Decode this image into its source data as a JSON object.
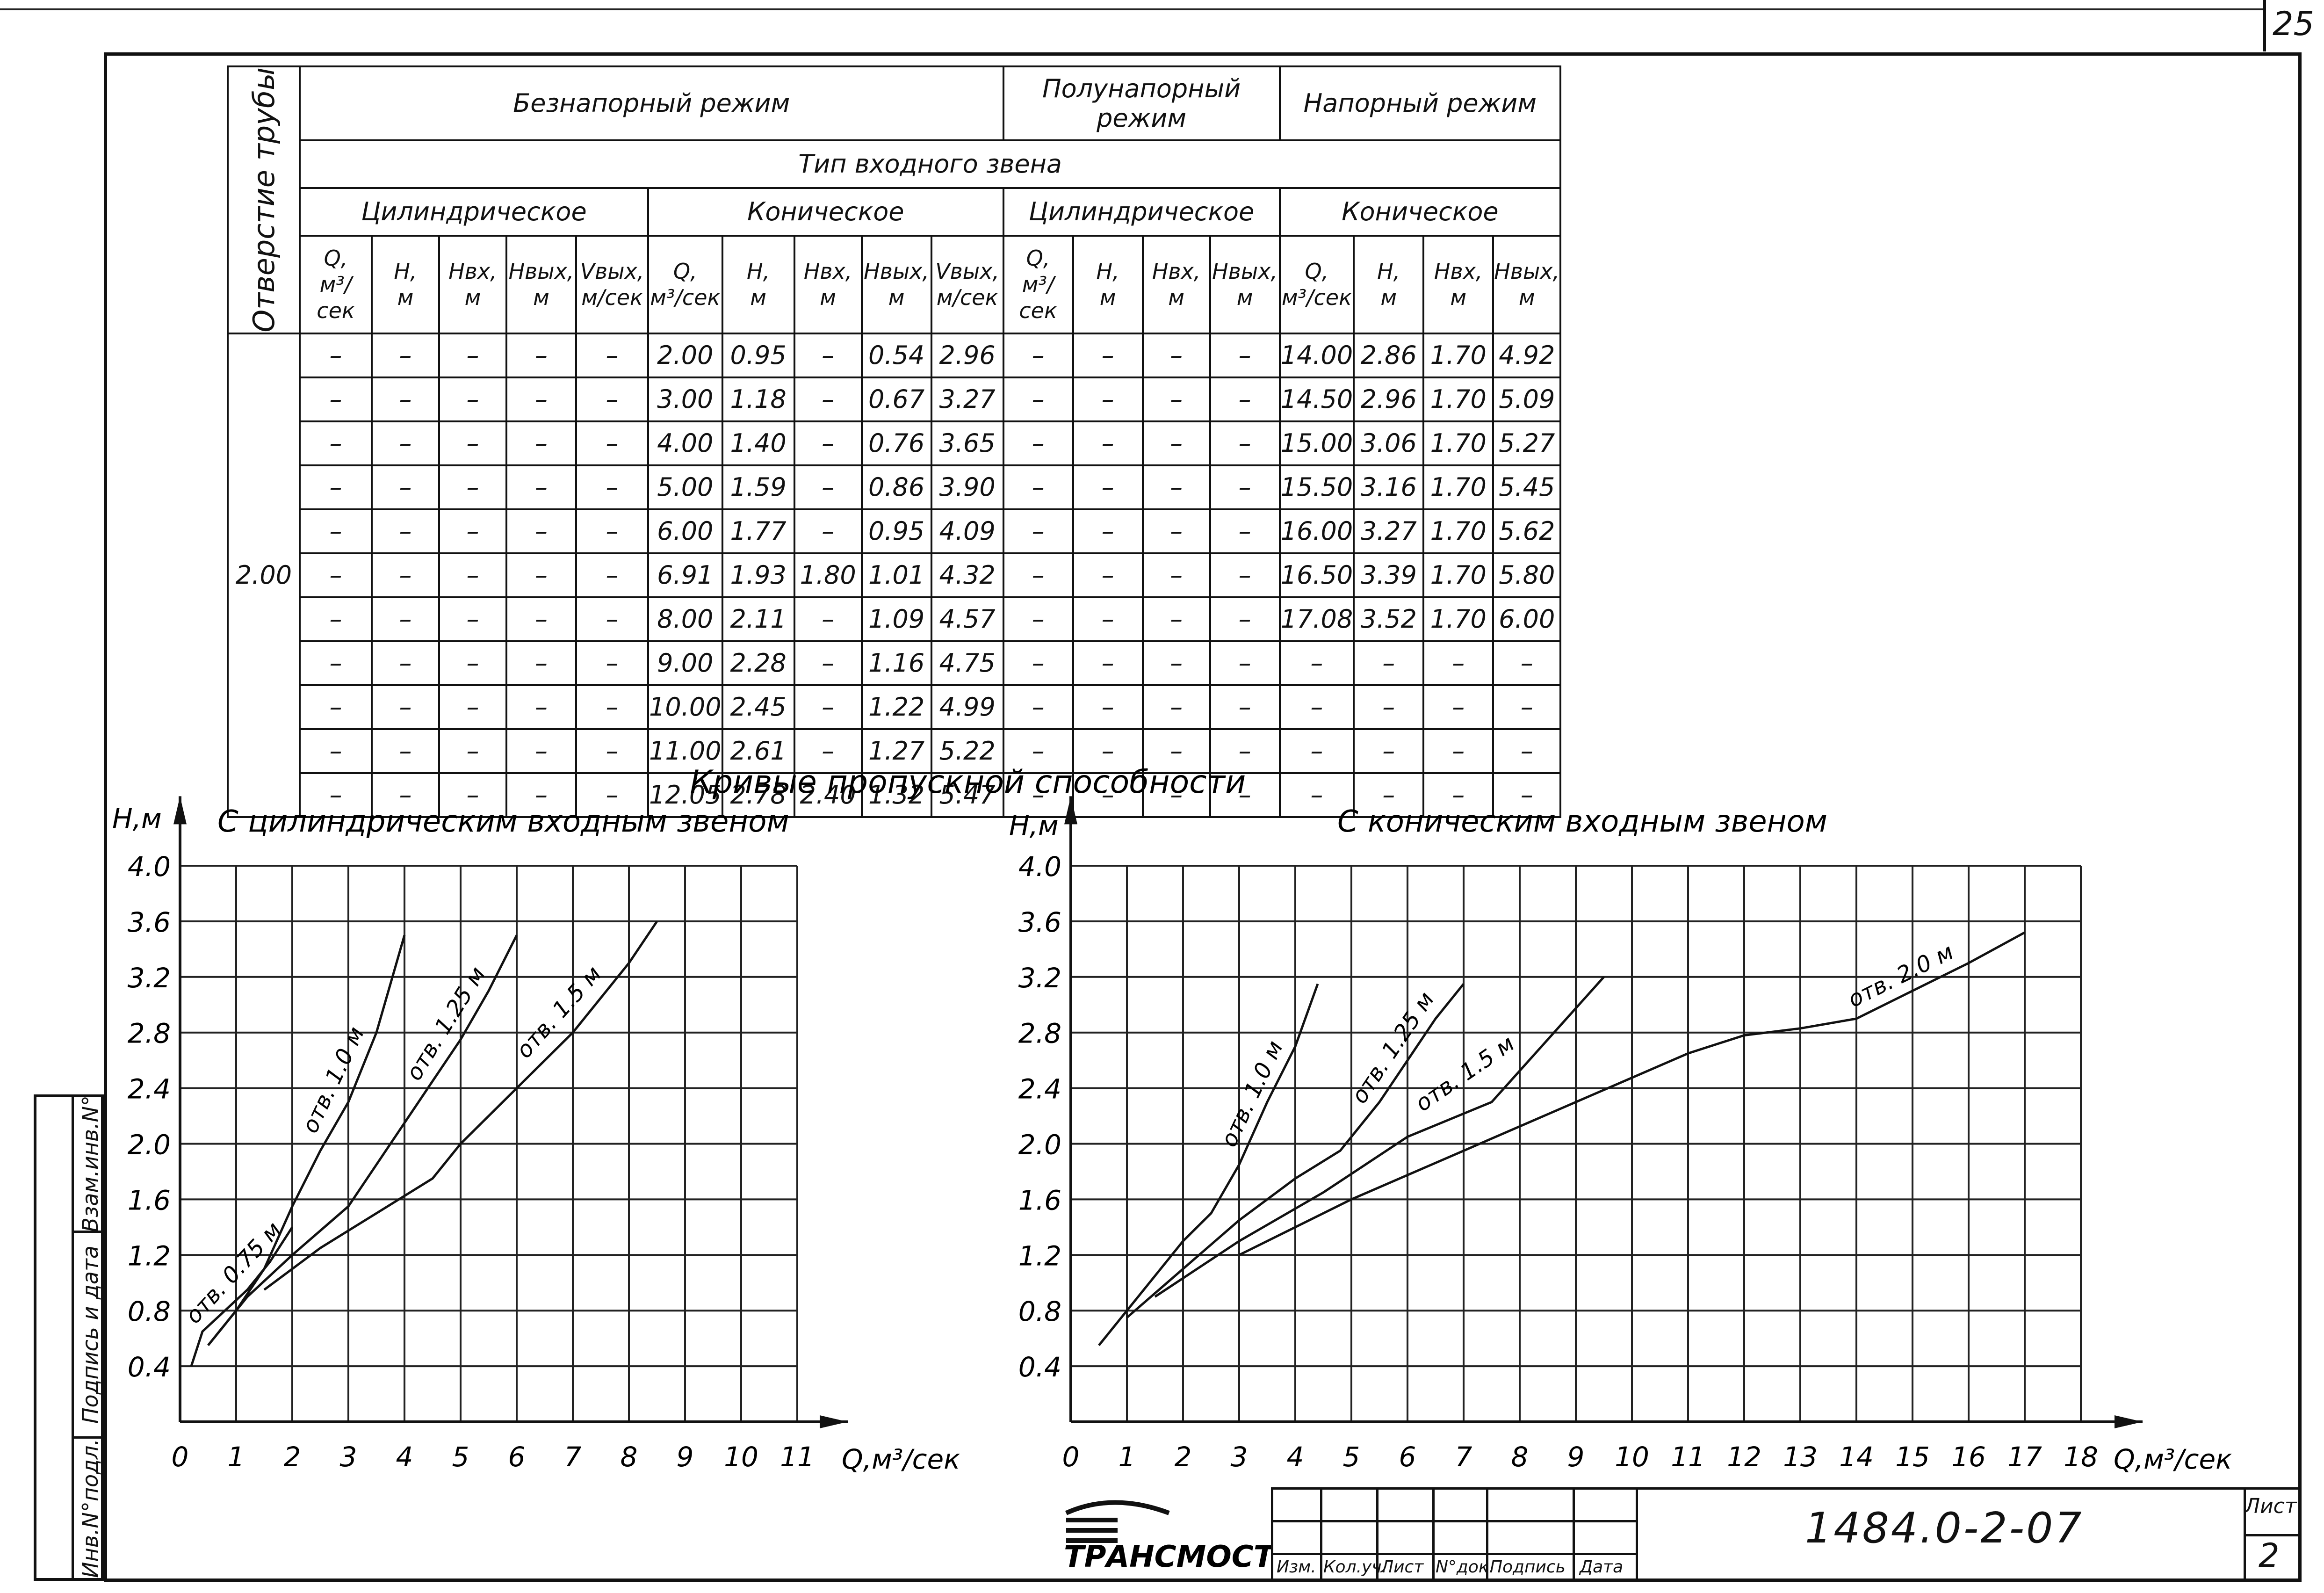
{
  "page_number": "25",
  "table": {
    "regimes": [
      "Безнапорный режим",
      "Полунапорный режим",
      "Напорный режим"
    ],
    "row_header": "Отверстие трубы",
    "inlet_type_header": "Тип входного звена",
    "inlet_types": [
      "Цилиндрическое",
      "Коническое",
      "Цилиндрическое",
      "Коническое"
    ],
    "col_names": [
      "Q,",
      "H,",
      "Hвх,",
      "Hвых,",
      "Vвых,"
    ],
    "col_units": [
      "м³/сек",
      "м",
      "м",
      "м",
      "м/сек"
    ],
    "pipe_opening": "2.00",
    "rows": [
      [
        "–",
        "–",
        "–",
        "–",
        "–",
        "2.00",
        "0.95",
        "–",
        "0.54",
        "2.96",
        "–",
        "–",
        "–",
        "–",
        "14.00",
        "2.86",
        "1.70",
        "4.92"
      ],
      [
        "–",
        "–",
        "–",
        "–",
        "–",
        "3.00",
        "1.18",
        "–",
        "0.67",
        "3.27",
        "–",
        "–",
        "–",
        "–",
        "14.50",
        "2.96",
        "1.70",
        "5.09"
      ],
      [
        "–",
        "–",
        "–",
        "–",
        "–",
        "4.00",
        "1.40",
        "–",
        "0.76",
        "3.65",
        "–",
        "–",
        "–",
        "–",
        "15.00",
        "3.06",
        "1.70",
        "5.27"
      ],
      [
        "–",
        "–",
        "–",
        "–",
        "–",
        "5.00",
        "1.59",
        "–",
        "0.86",
        "3.90",
        "–",
        "–",
        "–",
        "–",
        "15.50",
        "3.16",
        "1.70",
        "5.45"
      ],
      [
        "–",
        "–",
        "–",
        "–",
        "–",
        "6.00",
        "1.77",
        "–",
        "0.95",
        "4.09",
        "–",
        "–",
        "–",
        "–",
        "16.00",
        "3.27",
        "1.70",
        "5.62"
      ],
      [
        "–",
        "–",
        "–",
        "–",
        "–",
        "6.91",
        "1.93",
        "1.80",
        "1.01",
        "4.32",
        "–",
        "–",
        "–",
        "–",
        "16.50",
        "3.39",
        "1.70",
        "5.80"
      ],
      [
        "–",
        "–",
        "–",
        "–",
        "–",
        "8.00",
        "2.11",
        "–",
        "1.09",
        "4.57",
        "–",
        "–",
        "–",
        "–",
        "17.08",
        "3.52",
        "1.70",
        "6.00"
      ],
      [
        "–",
        "–",
        "–",
        "–",
        "–",
        "9.00",
        "2.28",
        "–",
        "1.16",
        "4.75",
        "–",
        "–",
        "–",
        "–",
        "–",
        "–",
        "–",
        "–"
      ],
      [
        "–",
        "–",
        "–",
        "–",
        "–",
        "10.00",
        "2.45",
        "–",
        "1.22",
        "4.99",
        "–",
        "–",
        "–",
        "–",
        "–",
        "–",
        "–",
        "–"
      ],
      [
        "–",
        "–",
        "–",
        "–",
        "–",
        "11.00",
        "2.61",
        "–",
        "1.27",
        "5.22",
        "–",
        "–",
        "–",
        "–",
        "–",
        "–",
        "–",
        "–"
      ],
      [
        "–",
        "–",
        "–",
        "–",
        "–",
        "12.05",
        "2.78",
        "2.40",
        "1.32",
        "5.47",
        "–",
        "–",
        "–",
        "–",
        "–",
        "–",
        "–",
        "–"
      ]
    ]
  },
  "charts_title": "Кривые пропускной способности",
  "chart_data": [
    {
      "type": "line",
      "title": "С цилиндрическим входным звеном",
      "xlabel": "Q,м³/сек",
      "ylabel": "Н,м",
      "xlim": [
        0,
        11
      ],
      "ylim": [
        0,
        4.0
      ],
      "xticks": [
        "0",
        "1",
        "2",
        "3",
        "4",
        "5",
        "6",
        "7",
        "8",
        "9",
        "10",
        "11"
      ],
      "yticks": [
        "4.0",
        "3.6",
        "3.2",
        "2.8",
        "2.4",
        "2.0",
        "1.6",
        "1.2",
        "0.8",
        "0.4"
      ],
      "grid": true,
      "series": [
        {
          "name": "отв. 0.75 м",
          "points": [
            [
              0.2,
              0.4
            ],
            [
              0.4,
              0.65
            ],
            [
              0.8,
              0.8
            ],
            [
              1.2,
              0.95
            ],
            [
              1.6,
              1.15
            ],
            [
              2.0,
              1.4
            ]
          ]
        },
        {
          "name": "отв. 1.0 м",
          "points": [
            [
              0.5,
              0.55
            ],
            [
              1.0,
              0.8
            ],
            [
              1.5,
              1.1
            ],
            [
              2.0,
              1.55
            ],
            [
              2.5,
              1.95
            ],
            [
              3.0,
              2.3
            ],
            [
              3.5,
              2.8
            ],
            [
              4.0,
              3.5
            ]
          ]
        },
        {
          "name": "отв. 1.25 м",
          "points": [
            [
              0.6,
              0.6
            ],
            [
              1.2,
              0.9
            ],
            [
              2.0,
              1.2
            ],
            [
              3.0,
              1.55
            ],
            [
              3.5,
              1.85
            ],
            [
              4.0,
              2.15
            ],
            [
              4.5,
              2.45
            ],
            [
              5.0,
              2.75
            ],
            [
              5.5,
              3.1
            ],
            [
              6.0,
              3.5
            ]
          ]
        },
        {
          "name": "отв. 1.5 м",
          "points": [
            [
              1.5,
              0.95
            ],
            [
              2.5,
              1.25
            ],
            [
              3.5,
              1.5
            ],
            [
              4.5,
              1.75
            ],
            [
              5.0,
              2.0
            ],
            [
              6.0,
              2.4
            ],
            [
              7.0,
              2.8
            ],
            [
              8.0,
              3.3
            ],
            [
              8.5,
              3.6
            ]
          ]
        }
      ]
    },
    {
      "type": "line",
      "title": "С коническим входным звеном",
      "xlabel": "Q,м³/сек",
      "ylabel": "Н,м",
      "xlim": [
        0,
        18
      ],
      "ylim": [
        0,
        4.0
      ],
      "xticks": [
        "0",
        "1",
        "2",
        "3",
        "4",
        "5",
        "6",
        "7",
        "8",
        "9",
        "10",
        "11",
        "12",
        "13",
        "14",
        "15",
        "16",
        "17",
        "18"
      ],
      "yticks": [
        "4.0",
        "3.6",
        "3.2",
        "2.8",
        "2.4",
        "2.0",
        "1.6",
        "1.2",
        "0.8",
        "0.4"
      ],
      "grid": true,
      "series": [
        {
          "name": "отв. 1.0 м",
          "points": [
            [
              0.5,
              0.55
            ],
            [
              1.0,
              0.8
            ],
            [
              1.5,
              1.05
            ],
            [
              2.0,
              1.3
            ],
            [
              2.5,
              1.5
            ],
            [
              3.0,
              1.85
            ],
            [
              3.5,
              2.3
            ],
            [
              4.0,
              2.7
            ],
            [
              4.4,
              3.15
            ]
          ]
        },
        {
          "name": "отв. 1.25 м",
          "points": [
            [
              1.0,
              0.75
            ],
            [
              2.0,
              1.1
            ],
            [
              3.0,
              1.45
            ],
            [
              4.0,
              1.75
            ],
            [
              4.8,
              1.95
            ],
            [
              5.5,
              2.3
            ],
            [
              6.0,
              2.6
            ],
            [
              6.5,
              2.9
            ],
            [
              7.0,
              3.15
            ]
          ]
        },
        {
          "name": "отв. 1.5 м",
          "points": [
            [
              1.5,
              0.9
            ],
            [
              3.0,
              1.3
            ],
            [
              4.5,
              1.65
            ],
            [
              6.0,
              2.05
            ],
            [
              7.5,
              2.3
            ],
            [
              8.5,
              2.75
            ],
            [
              9.5,
              3.2
            ]
          ]
        },
        {
          "name": "отв. 2.0 м",
          "points": [
            [
              3.0,
              1.2
            ],
            [
              5.0,
              1.6
            ],
            [
              7.0,
              1.95
            ],
            [
              9.0,
              2.3
            ],
            [
              11.0,
              2.65
            ],
            [
              12.0,
              2.78
            ],
            [
              13.0,
              2.83
            ],
            [
              14.0,
              2.9
            ],
            [
              15.0,
              3.1
            ],
            [
              16.0,
              3.3
            ],
            [
              17.0,
              3.52
            ]
          ]
        }
      ]
    }
  ],
  "title_block": {
    "company_logo_text": "ТРАНСМОСТ",
    "labels": [
      "Изм.",
      "Кол.уч.",
      "Лист",
      "N°док.",
      "Подпись",
      "Дата"
    ],
    "doc_number": "1484.0-2-07",
    "sheet_label": "Лист",
    "sheet_number": "2"
  },
  "side_stamp": [
    "Инв.N°подл.",
    "Подпись и дата",
    "Взам.инв.N°"
  ]
}
